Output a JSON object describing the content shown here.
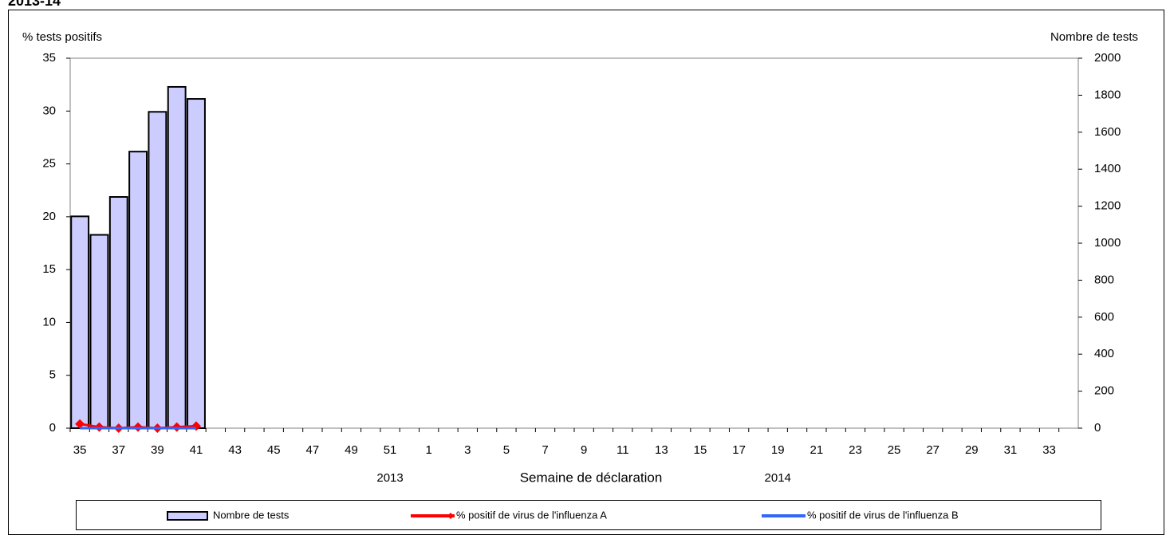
{
  "chart_data": {
    "type": "bar-line",
    "title": "2013-14",
    "y_label": "% tests positifs",
    "y2_label": "Nombre de tests",
    "x_label": "Semaine de déclaration",
    "year_labels": [
      "2013",
      "2014"
    ],
    "categories": [
      "35",
      null,
      "37",
      null,
      "39",
      null,
      "41",
      null,
      "43",
      null,
      "45",
      null,
      "47",
      null,
      "49",
      null,
      "51",
      null,
      "1",
      null,
      "3",
      null,
      "5",
      null,
      "7",
      null,
      "9",
      null,
      "11",
      null,
      "13",
      null,
      "15",
      null,
      "17",
      null,
      "19",
      null,
      "21",
      null,
      "23",
      null,
      "25",
      null,
      "27",
      null,
      "29",
      null,
      "31",
      null,
      "33",
      null
    ],
    "series": [
      {
        "name": "Nombre de tests",
        "type": "bar",
        "axis": "y2",
        "color": "#ccccff",
        "values": [
          1145,
          1045,
          1250,
          1495,
          1710,
          1845,
          1780,
          null,
          null,
          null,
          null,
          null,
          null,
          null,
          null,
          null,
          null,
          null,
          null,
          null,
          null,
          null,
          null,
          null,
          null,
          null,
          null,
          null,
          null,
          null,
          null,
          null,
          null,
          null,
          null,
          null,
          null,
          null,
          null,
          null,
          null,
          null,
          null,
          null,
          null,
          null,
          null,
          null,
          null,
          null,
          null,
          null
        ]
      },
      {
        "name": "% positif de virus de l'influenza A",
        "type": "line",
        "color": "#ff0000",
        "values": [
          0.4,
          0.1,
          0,
          0.1,
          0,
          0.1,
          0.2,
          null,
          null,
          null,
          null,
          null,
          null,
          null,
          null,
          null,
          null,
          null,
          null,
          null,
          null,
          null,
          null,
          null,
          null,
          null,
          null,
          null,
          null,
          null,
          null,
          null,
          null,
          null,
          null,
          null,
          null,
          null,
          null,
          null,
          null,
          null,
          null,
          null,
          null,
          null,
          null,
          null,
          null,
          null,
          null,
          null
        ]
      },
      {
        "name": "% positif de virus de l'influenza B",
        "type": "line",
        "color": "#3366ff",
        "values": [
          0,
          0,
          0,
          0,
          0,
          0,
          0,
          null,
          null,
          null,
          null,
          null,
          null,
          null,
          null,
          null,
          null,
          null,
          null,
          null,
          null,
          null,
          null,
          null,
          null,
          null,
          null,
          null,
          null,
          null,
          null,
          null,
          null,
          null,
          null,
          null,
          null,
          null,
          null,
          null,
          null,
          null,
          null,
          null,
          null,
          null,
          null,
          null,
          null,
          null,
          null,
          null
        ]
      }
    ],
    "ylim": [
      0,
      35
    ],
    "yticks": [
      0,
      5,
      10,
      15,
      20,
      25,
      30,
      35
    ],
    "y2lim": [
      0,
      2000
    ],
    "y2ticks": [
      0,
      200,
      400,
      600,
      800,
      1000,
      1200,
      1400,
      1600,
      1800,
      2000
    ],
    "grid": false,
    "legend": "bottom"
  }
}
